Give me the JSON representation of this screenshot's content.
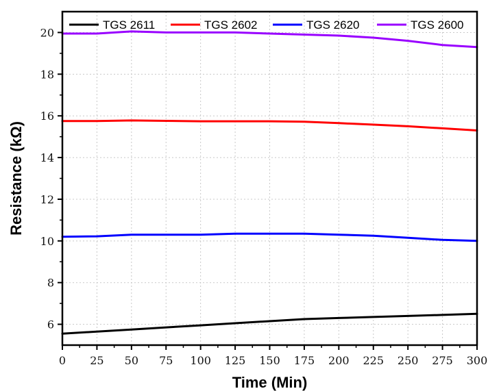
{
  "chart_data": {
    "type": "line",
    "xlabel": "Time (Min)",
    "ylabel": "Resistance (kΩ)",
    "xlim": [
      0,
      300
    ],
    "ylim": [
      5,
      21
    ],
    "xticks": [
      0,
      25,
      50,
      75,
      100,
      125,
      150,
      175,
      200,
      225,
      250,
      275,
      300
    ],
    "yticks": [
      6,
      8,
      10,
      12,
      14,
      16,
      18,
      20
    ],
    "grid": true,
    "legend_position": "top",
    "series": [
      {
        "name": "TGS 2611",
        "color": "#000000",
        "x": [
          0,
          25,
          50,
          75,
          100,
          125,
          150,
          175,
          200,
          225,
          250,
          275,
          300
        ],
        "y": [
          5.55,
          5.65,
          5.75,
          5.85,
          5.95,
          6.05,
          6.15,
          6.25,
          6.3,
          6.35,
          6.4,
          6.45,
          6.5
        ]
      },
      {
        "name": "TGS 2602",
        "color": "#ff0000",
        "x": [
          0,
          25,
          50,
          75,
          100,
          125,
          150,
          175,
          200,
          225,
          250,
          275,
          300
        ],
        "y": [
          15.75,
          15.75,
          15.78,
          15.76,
          15.74,
          15.74,
          15.74,
          15.72,
          15.65,
          15.58,
          15.5,
          15.4,
          15.3
        ]
      },
      {
        "name": "TGS 2620",
        "color": "#0000ff",
        "x": [
          0,
          25,
          50,
          75,
          100,
          125,
          150,
          175,
          200,
          225,
          250,
          275,
          300
        ],
        "y": [
          10.2,
          10.22,
          10.3,
          10.3,
          10.3,
          10.35,
          10.35,
          10.35,
          10.3,
          10.25,
          10.15,
          10.05,
          10.0
        ]
      },
      {
        "name": "TGS 2600",
        "color": "#9900ff",
        "x": [
          0,
          25,
          50,
          75,
          100,
          125,
          150,
          175,
          200,
          225,
          250,
          275,
          300
        ],
        "y": [
          19.95,
          19.95,
          20.05,
          20.0,
          20.0,
          20.0,
          19.95,
          19.9,
          19.85,
          19.75,
          19.6,
          19.4,
          19.3
        ]
      }
    ]
  }
}
